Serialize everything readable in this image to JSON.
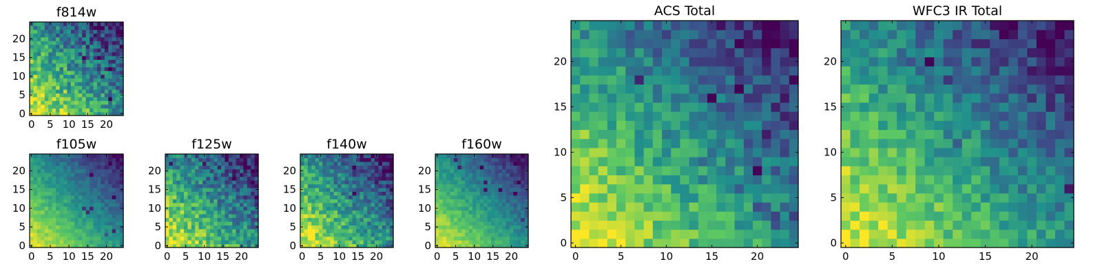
{
  "figure": {
    "colormap": "viridis",
    "colors": [
      "#440154",
      "#3b528b",
      "#21918c",
      "#5ec962",
      "#fde725"
    ]
  },
  "chart_data": [
    {
      "type": "heatmap",
      "title": "f814w",
      "grid": false,
      "legend": "none",
      "xlim": [
        0,
        25
      ],
      "ylim": [
        0,
        25
      ],
      "xticks": [
        0,
        5,
        10,
        15,
        20
      ],
      "yticks": [
        0,
        5,
        10,
        15,
        20
      ],
      "peak_corner": "bottom-left",
      "gradient": "bright yellow near origin fading to teal and blue-purple toward the top right"
    },
    {
      "type": "heatmap",
      "title": "f105w",
      "grid": false,
      "legend": "none",
      "xlim": [
        0,
        25
      ],
      "ylim": [
        0,
        25
      ],
      "xticks": [
        0,
        5,
        10,
        15,
        20
      ],
      "yticks": [
        0,
        5,
        10,
        15,
        20
      ],
      "peak_corner": "bottom-left",
      "gradient": "smooth diagonal gradient from yellow to purple"
    },
    {
      "type": "heatmap",
      "title": "f125w",
      "grid": false,
      "legend": "none",
      "xlim": [
        0,
        25
      ],
      "ylim": [
        0,
        25
      ],
      "xticks": [
        0,
        5,
        10,
        15,
        20
      ],
      "yticks": [
        0,
        5,
        10,
        15,
        20
      ],
      "peak_corner": "bottom-left",
      "gradient": "noisy diagonal gradient from yellow-green to blue"
    },
    {
      "type": "heatmap",
      "title": "f140w",
      "grid": false,
      "legend": "none",
      "xlim": [
        0,
        25
      ],
      "ylim": [
        0,
        25
      ],
      "xticks": [
        0,
        5,
        10,
        15,
        20
      ],
      "yticks": [
        0,
        5,
        10,
        15,
        20
      ],
      "peak_corner": "bottom-left",
      "gradient": "diagonal gradient from yellow-green to dark blue"
    },
    {
      "type": "heatmap",
      "title": "f160w",
      "grid": false,
      "legend": "none",
      "xlim": [
        0,
        25
      ],
      "ylim": [
        0,
        25
      ],
      "xticks": [
        0,
        5,
        10,
        15,
        20
      ],
      "yticks": [
        0,
        5,
        10,
        15,
        20
      ],
      "peak_corner": "bottom-left",
      "gradient": "smooth diagonal gradient from yellow to dark blue"
    },
    {
      "type": "heatmap",
      "title": "ACS Total",
      "grid": false,
      "legend": "none",
      "xlim": [
        0,
        25
      ],
      "ylim": [
        0,
        25
      ],
      "xticks": [
        0,
        5,
        10,
        15,
        20
      ],
      "yticks": [
        0,
        5,
        10,
        15,
        20
      ],
      "peak_corner": "bottom-left",
      "gradient": "yellow lower-left fading to teal with dark purple pixels in the upper right"
    },
    {
      "type": "heatmap",
      "title": "WFC3 IR Total",
      "grid": false,
      "legend": "none",
      "xlim": [
        0,
        25
      ],
      "ylim": [
        0,
        25
      ],
      "xticks": [
        0,
        5,
        10,
        15,
        20
      ],
      "yticks": [
        0,
        5,
        10,
        15,
        20
      ],
      "peak_corner": "bottom-left",
      "gradient": "yellow lower-left fading to teal with dark purple pixels along the top"
    }
  ]
}
